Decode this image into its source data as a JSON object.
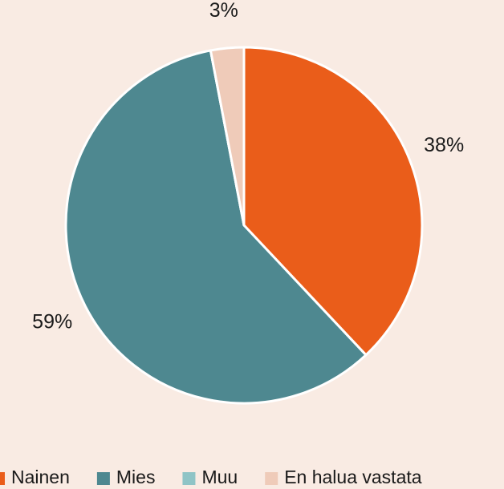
{
  "chart_data": {
    "type": "pie",
    "categories": [
      "Nainen",
      "Mies",
      "Muu",
      "En halua vastata"
    ],
    "values": [
      38,
      59,
      0,
      3
    ],
    "value_labels": [
      "38%",
      "59%",
      null,
      "3%"
    ],
    "colors": [
      "#ea5d1a",
      "#4e8890",
      "#8fc4c6",
      "#efcbb9"
    ],
    "legend": "bottom"
  }
}
